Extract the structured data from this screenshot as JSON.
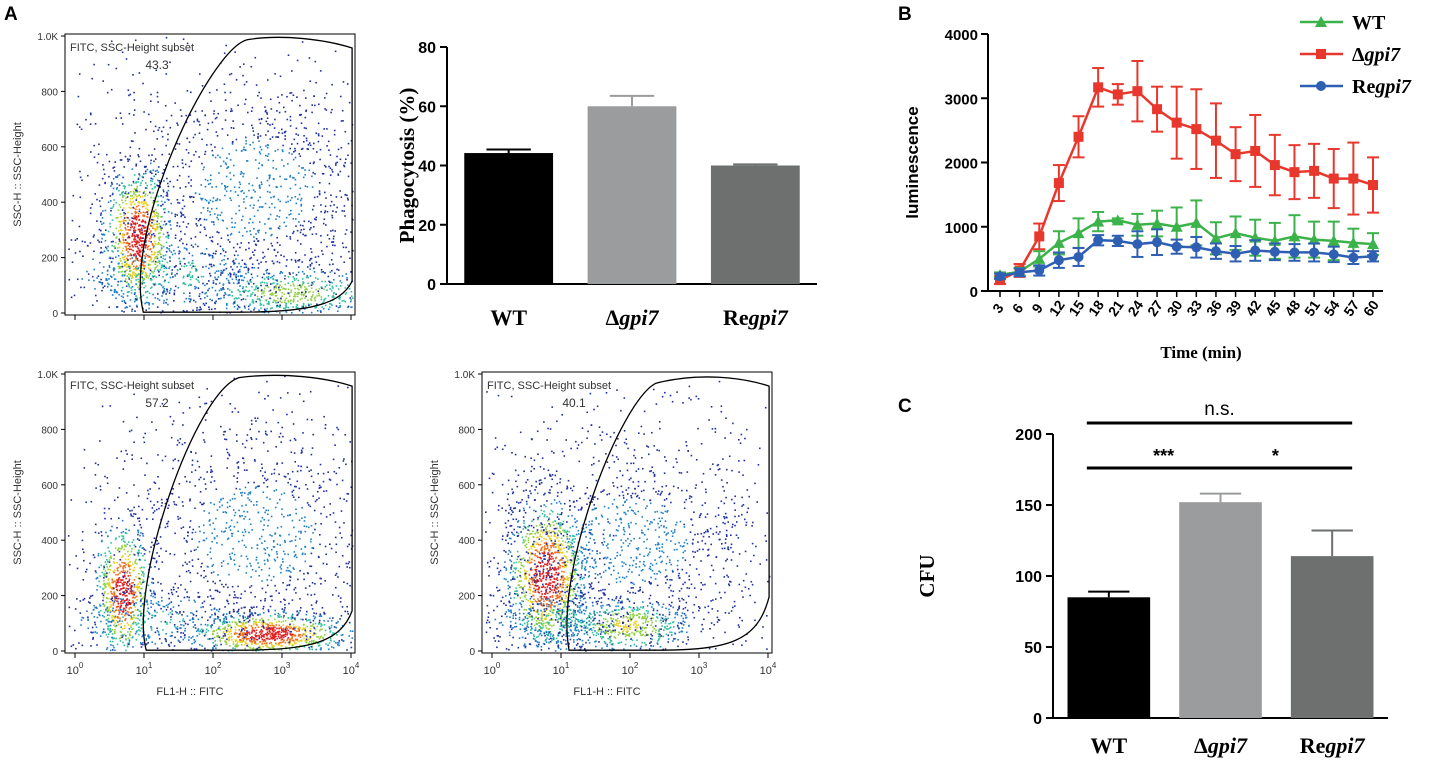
{
  "panel_labels": {
    "a": "A",
    "b": "B",
    "c": "C"
  },
  "colors": {
    "wt_bar": "#000000",
    "gpi7_bar": "#9a9c9e",
    "regpi7_bar": "#6e7070",
    "wt_line": "#3bb34a",
    "gpi7_line": "#e8372c",
    "regpi7_line": "#2f5fb3"
  },
  "flow_common": {
    "gate_name": "FITC, SSC-Height subset",
    "y_axis_label": "SSC-H :: SSC-Height",
    "x_axis_label": "FL1-H :: FITC",
    "y_ticks": [
      "0",
      "200",
      "400",
      "600",
      "800",
      "1.0K"
    ],
    "x_tick_base": "10",
    "x_tick_exps": [
      "0",
      "1",
      "2",
      "3",
      "4"
    ]
  },
  "flow_plots": [
    {
      "id": "wt",
      "gate_percent": "43.3"
    },
    {
      "id": "gpi7",
      "gate_percent": "57.2"
    },
    {
      "id": "regpi7",
      "gate_percent": "40.1"
    }
  ],
  "chart_data": [
    {
      "id": "phagocytosis",
      "type": "bar",
      "title": "",
      "xlabel": "",
      "ylabel": "Phagocytosis (%)",
      "ylim": [
        0,
        80
      ],
      "yticks": [
        0,
        20,
        40,
        60,
        80
      ],
      "categories": [
        {
          "prefix": "",
          "italic": "",
          "plain": "WT"
        },
        {
          "prefix": "Δ",
          "italic": "gpi7",
          "plain": ""
        },
        {
          "prefix": "Re",
          "italic": "gpi7",
          "plain": ""
        }
      ],
      "values": [
        44.2,
        60,
        40
      ],
      "errors": [
        1.2,
        3.5,
        0.4
      ]
    },
    {
      "id": "luminescence",
      "type": "line",
      "title": "",
      "xlabel": "Time (min)",
      "ylabel": "luminescence",
      "ylim": [
        0,
        4000
      ],
      "yticks": [
        0,
        1000,
        2000,
        3000,
        4000
      ],
      "x": [
        3,
        6,
        9,
        12,
        15,
        18,
        21,
        24,
        27,
        30,
        33,
        36,
        39,
        42,
        45,
        48,
        51,
        54,
        57,
        60
      ],
      "series": [
        {
          "name": "WT",
          "prefix": "",
          "italic": "",
          "plain": "WT",
          "marker": "triangle",
          "values": [
            250,
            300,
            500,
            750,
            900,
            1080,
            1100,
            1030,
            1050,
            1000,
            1060,
            820,
            900,
            830,
            780,
            850,
            800,
            780,
            750,
            730
          ],
          "errors": [
            40,
            60,
            120,
            180,
            230,
            150,
            30,
            170,
            200,
            300,
            350,
            250,
            260,
            280,
            280,
            330,
            280,
            300,
            220,
            170
          ]
        },
        {
          "name": "Δgpi7",
          "prefix": "Δ",
          "italic": "gpi7",
          "plain": "",
          "marker": "square",
          "values": [
            170,
            320,
            850,
            1680,
            2400,
            3170,
            3060,
            3110,
            2830,
            2620,
            2520,
            2340,
            2130,
            2180,
            1960,
            1850,
            1870,
            1750,
            1750,
            1650
          ],
          "errors": [
            60,
            100,
            200,
            280,
            320,
            300,
            160,
            470,
            350,
            560,
            620,
            580,
            420,
            560,
            470,
            420,
            420,
            460,
            560,
            430
          ]
        },
        {
          "name": "Regpi7",
          "prefix": "Re",
          "italic": "gpi7",
          "plain": "",
          "marker": "circle",
          "values": [
            230,
            290,
            320,
            480,
            530,
            790,
            780,
            730,
            760,
            690,
            680,
            620,
            580,
            630,
            610,
            600,
            600,
            570,
            520,
            540
          ],
          "errors": [
            40,
            60,
            80,
            120,
            140,
            80,
            80,
            200,
            200,
            110,
            160,
            120,
            120,
            160,
            130,
            130,
            140,
            120,
            100,
            80
          ]
        }
      ],
      "legend_position": "top-right"
    },
    {
      "id": "cfu",
      "type": "bar",
      "title": "",
      "xlabel": "",
      "ylabel": "CFU",
      "ylim": [
        0,
        200
      ],
      "yticks": [
        0,
        50,
        100,
        150,
        200
      ],
      "categories": [
        {
          "prefix": "",
          "italic": "",
          "plain": "WT"
        },
        {
          "prefix": "Δ",
          "italic": "gpi7",
          "plain": ""
        },
        {
          "prefix": "Re",
          "italic": "gpi7",
          "plain": ""
        }
      ],
      "values": [
        85,
        152,
        114
      ],
      "errors": [
        4,
        6,
        18
      ],
      "significance": [
        {
          "label": "n.s.",
          "from": 0,
          "to": 2
        },
        {
          "label": "***",
          "from": 0,
          "to": 1
        },
        {
          "label": "*",
          "from": 1,
          "to": 2
        }
      ]
    }
  ]
}
